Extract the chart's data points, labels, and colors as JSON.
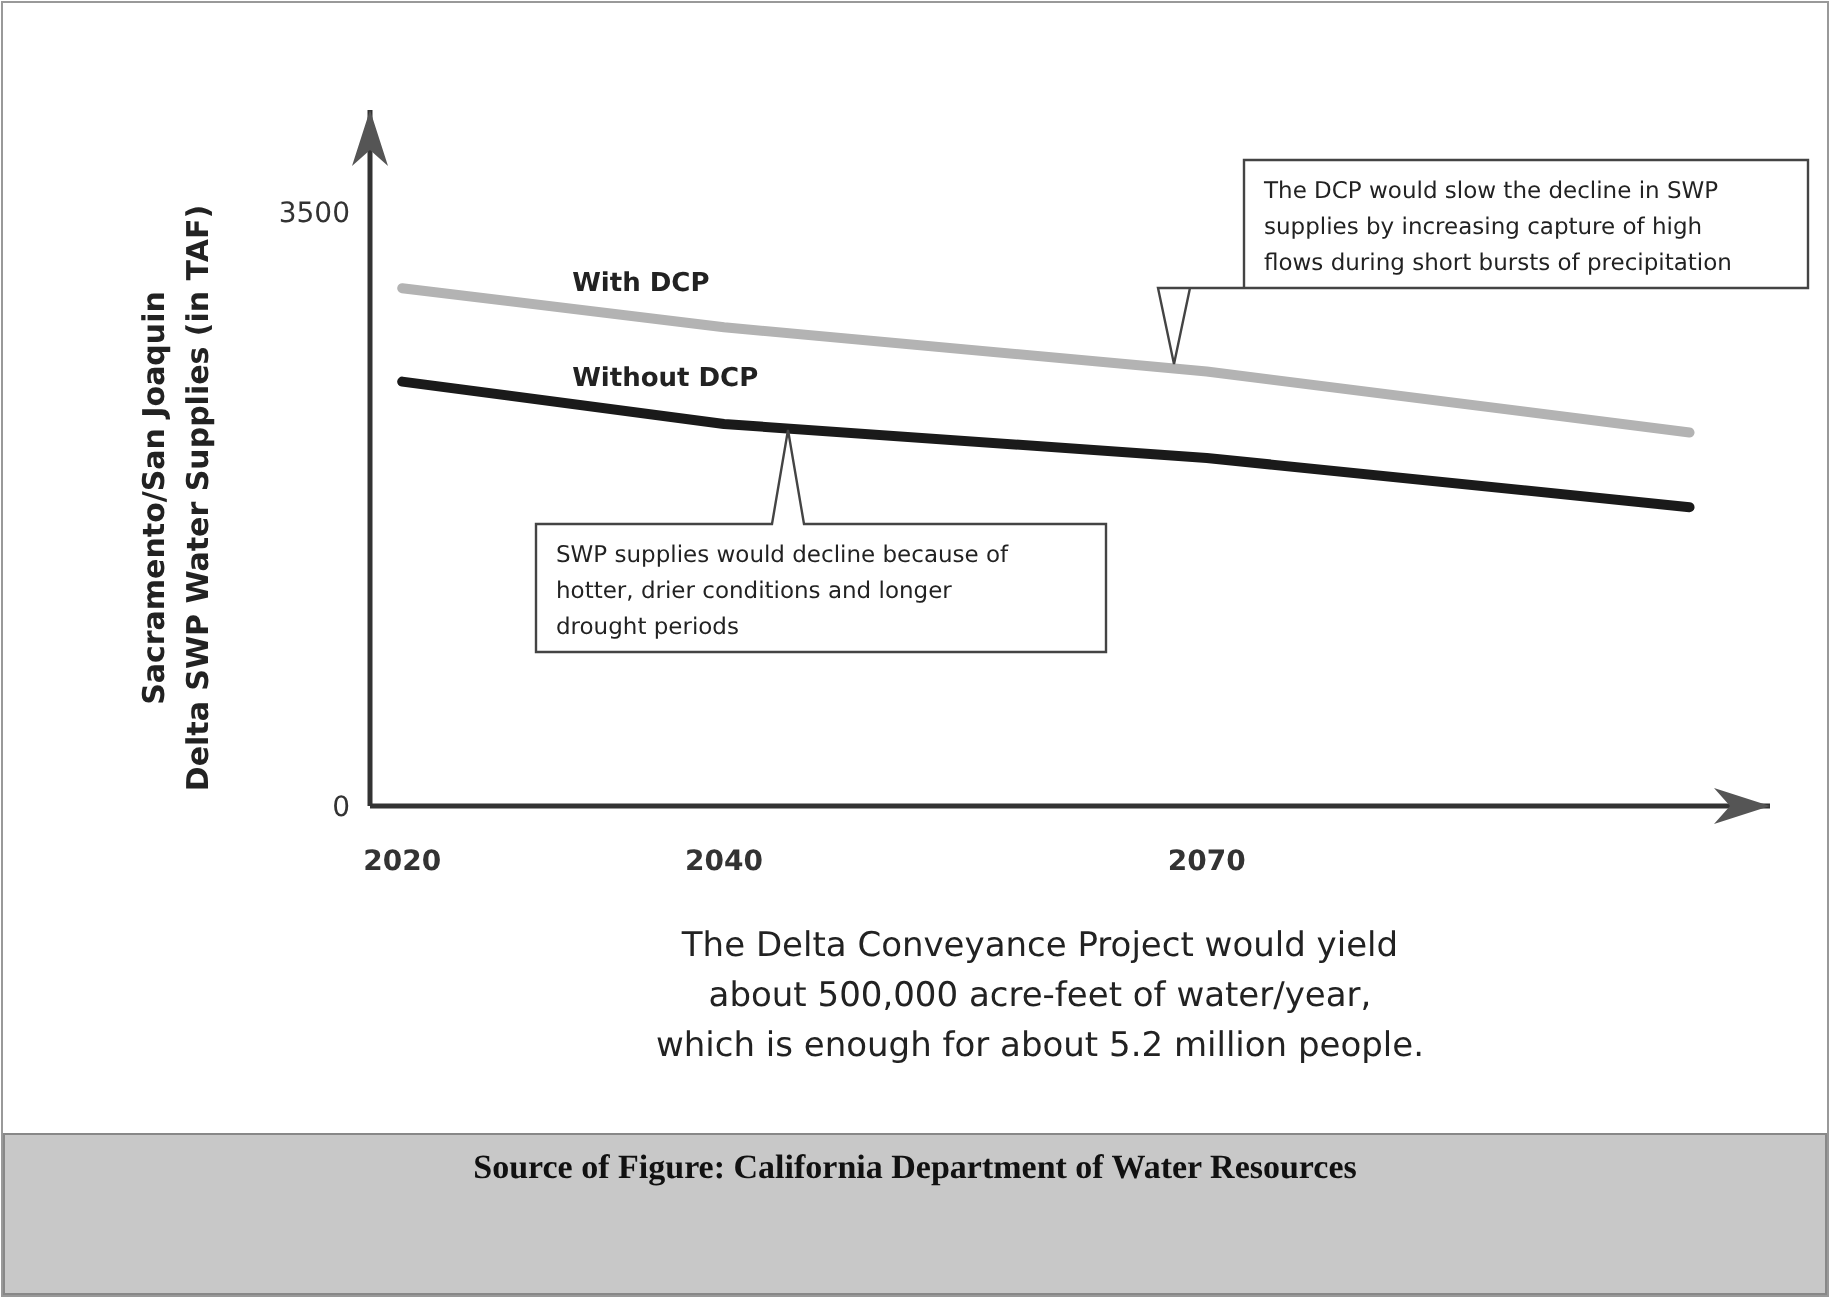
{
  "chart_data": {
    "type": "line",
    "ylabel": "Sacramento/San Joaquin\nDelta SWP Water Supplies (in TAF)",
    "x": [
      2020,
      2040,
      2070,
      2100
    ],
    "series": [
      {
        "name": "With DCP",
        "color": "#b3b3b3",
        "values": [
          3050,
          2820,
          2560,
          2200
        ]
      },
      {
        "name": "Without DCP",
        "color": "#1a1a1a",
        "values": [
          2500,
          2250,
          2050,
          1760
        ]
      }
    ],
    "xlim": [
      2018,
      2105
    ],
    "xticks": [
      2020,
      2040,
      2070
    ],
    "ylim": [
      0,
      4100
    ],
    "yticks": [
      0,
      3500
    ],
    "grid": false,
    "legend": false,
    "annotations": [
      "The DCP would slow the decline in SWP supplies by increasing capture of high flows during short bursts of precipitation",
      "SWP supplies would decline because of hotter, drier conditions and longer drought periods",
      "The Delta Conveyance Project would yield about 500,000 acre-feet of water/year, which is enough for about 5.2 million people.",
      "Source of Figure: California Department of Water Resources"
    ]
  }
}
